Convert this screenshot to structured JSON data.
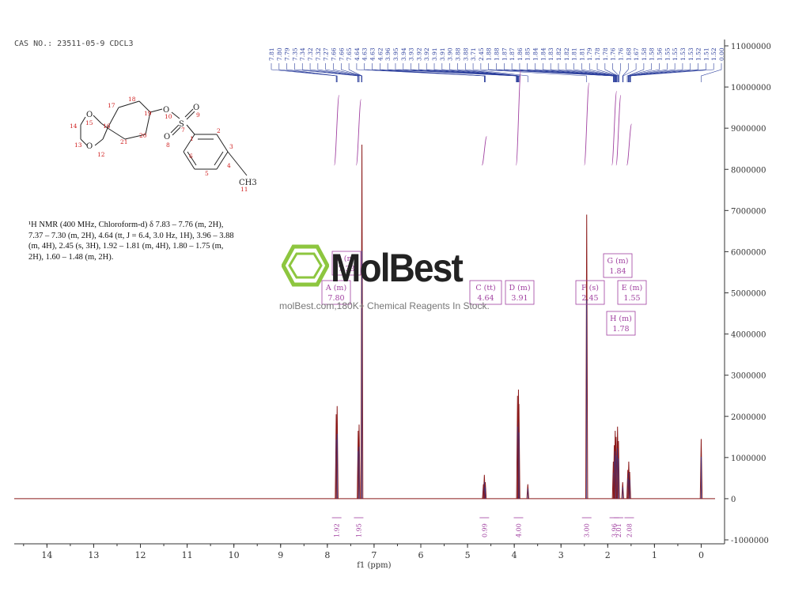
{
  "header": {
    "cas_line": "CAS NO.: 23511-05-9 CDCL3"
  },
  "nmr_description": {
    "line1": "¹H NMR (400 MHz, Chloroform-d) δ 7.83 – 7.76 (m, 2H),",
    "line2": "7.37 – 7.30 (m, 2H), 4.64 (tt, J = 6.4, 3.0 Hz, 1H), 3.96 – 3.88",
    "line3": "(m, 4H), 2.45 (s, 3H), 1.92 – 1.81 (m, 4H), 1.80 – 1.75 (m,",
    "line4": "2H), 1.60 – 1.48 (m, 2H)."
  },
  "watermark": {
    "brand": "MolBest",
    "tagline": "molBest.com,180K+ Chemical Reagents In Stock.",
    "brand_color": "#8dc63f"
  },
  "molecule": {
    "atom_numbers": [
      "1",
      "2",
      "3",
      "4",
      "5",
      "6",
      "7",
      "8",
      "9",
      "10",
      "11",
      "12",
      "13",
      "14",
      "15",
      "16",
      "17",
      "18",
      "19",
      "20",
      "21"
    ],
    "atoms": [
      "O",
      "O",
      "O",
      "O",
      "S",
      "O",
      "CH3"
    ]
  },
  "chart_data": {
    "type": "line",
    "title": "",
    "xlabel": "f1 (ppm)",
    "ylabel": "",
    "x_reversed": true,
    "xlim": [
      14.7,
      -0.5
    ],
    "ylim": [
      -1000000,
      11000000
    ],
    "x_ticks": [
      14,
      13,
      12,
      11,
      10,
      9,
      8,
      7,
      6,
      5,
      4,
      3,
      2,
      1,
      0
    ],
    "y_ticks": [
      -1000000,
      0,
      1000000,
      2000000,
      3000000,
      4000000,
      5000000,
      6000000,
      7000000,
      8000000,
      9000000,
      10000000,
      11000000
    ],
    "y_tick_labels": [
      "-1000000",
      "0",
      "1000000",
      "2000000",
      "3000000",
      "4000000",
      "5000000",
      "6000000",
      "7000000",
      "8000000",
      "9000000",
      "10000000",
      "11000000"
    ],
    "peak_labels": [
      "7.81",
      "7.80",
      "7.79",
      "7.35",
      "7.34",
      "7.32",
      "7.32",
      "7.27",
      "7.66",
      "7.66",
      "7.65",
      "4.64",
      "4.63",
      "4.63",
      "4.62",
      "3.96",
      "3.95",
      "3.94",
      "3.93",
      "3.92",
      "3.92",
      "3.91",
      "3.91",
      "3.90",
      "3.88",
      "3.88",
      "3.71",
      "2.45",
      "1.88",
      "1.88",
      "1.87",
      "1.87",
      "1.86",
      "1.85",
      "1.84",
      "1.84",
      "1.83",
      "1.82",
      "1.82",
      "1.81",
      "1.81",
      "1.79",
      "1.78",
      "1.78",
      "1.76",
      "1.76",
      "1.68",
      "1.67",
      "1.58",
      "1.58",
      "1.56",
      "1.55",
      "1.55",
      "1.53",
      "1.53",
      "1.52",
      "1.51",
      "1.52",
      "0.00"
    ],
    "peaks": [
      {
        "ppm": 7.81,
        "height": 2050000
      },
      {
        "ppm": 7.79,
        "height": 2250000
      },
      {
        "ppm": 7.34,
        "height": 1650000
      },
      {
        "ppm": 7.32,
        "height": 1800000
      },
      {
        "ppm": 7.26,
        "height": 8600000
      },
      {
        "ppm": 4.66,
        "height": 350000
      },
      {
        "ppm": 4.64,
        "height": 580000
      },
      {
        "ppm": 4.62,
        "height": 400000
      },
      {
        "ppm": 3.93,
        "height": 2500000
      },
      {
        "ppm": 3.91,
        "height": 2650000
      },
      {
        "ppm": 3.9,
        "height": 2300000
      },
      {
        "ppm": 3.71,
        "height": 350000
      },
      {
        "ppm": 2.45,
        "height": 6900000
      },
      {
        "ppm": 1.88,
        "height": 900000
      },
      {
        "ppm": 1.86,
        "height": 1300000
      },
      {
        "ppm": 1.84,
        "height": 1650000
      },
      {
        "ppm": 1.82,
        "height": 1500000
      },
      {
        "ppm": 1.79,
        "height": 1750000
      },
      {
        "ppm": 1.77,
        "height": 1400000
      },
      {
        "ppm": 1.68,
        "height": 400000
      },
      {
        "ppm": 1.57,
        "height": 700000
      },
      {
        "ppm": 1.55,
        "height": 900000
      },
      {
        "ppm": 1.53,
        "height": 650000
      },
      {
        "ppm": 0.0,
        "height": 1450000
      }
    ],
    "multiplet_boxes": [
      {
        "letter": "A (m)",
        "shift": "7.80"
      },
      {
        "letter": "B (m)",
        "shift": "7.33"
      },
      {
        "letter": "C (tt)",
        "shift": "4.64"
      },
      {
        "letter": "D (m)",
        "shift": "3.91"
      },
      {
        "letter": "F (s)",
        "shift": "2.45"
      },
      {
        "letter": "G (m)",
        "shift": "1.84"
      },
      {
        "letter": "E (m)",
        "shift": "1.55"
      },
      {
        "letter": "H (m)",
        "shift": "1.78"
      }
    ],
    "integrals": [
      {
        "ppm": 7.8,
        "value": "1.92"
      },
      {
        "ppm": 7.33,
        "value": "1.95"
      },
      {
        "ppm": 4.64,
        "value": "0.99"
      },
      {
        "ppm": 3.91,
        "value": "4.00"
      },
      {
        "ppm": 2.45,
        "value": "3.00"
      },
      {
        "ppm": 1.86,
        "value": "3.96"
      },
      {
        "ppm": 1.77,
        "value": "2.01"
      },
      {
        "ppm": 1.54,
        "value": "2.08"
      }
    ],
    "colors": {
      "spectrum": "#8b1a1a",
      "spectrum_blue": "#2b3a9a",
      "integral": "#a040a0",
      "peak_label": "#2c3f9c"
    }
  }
}
